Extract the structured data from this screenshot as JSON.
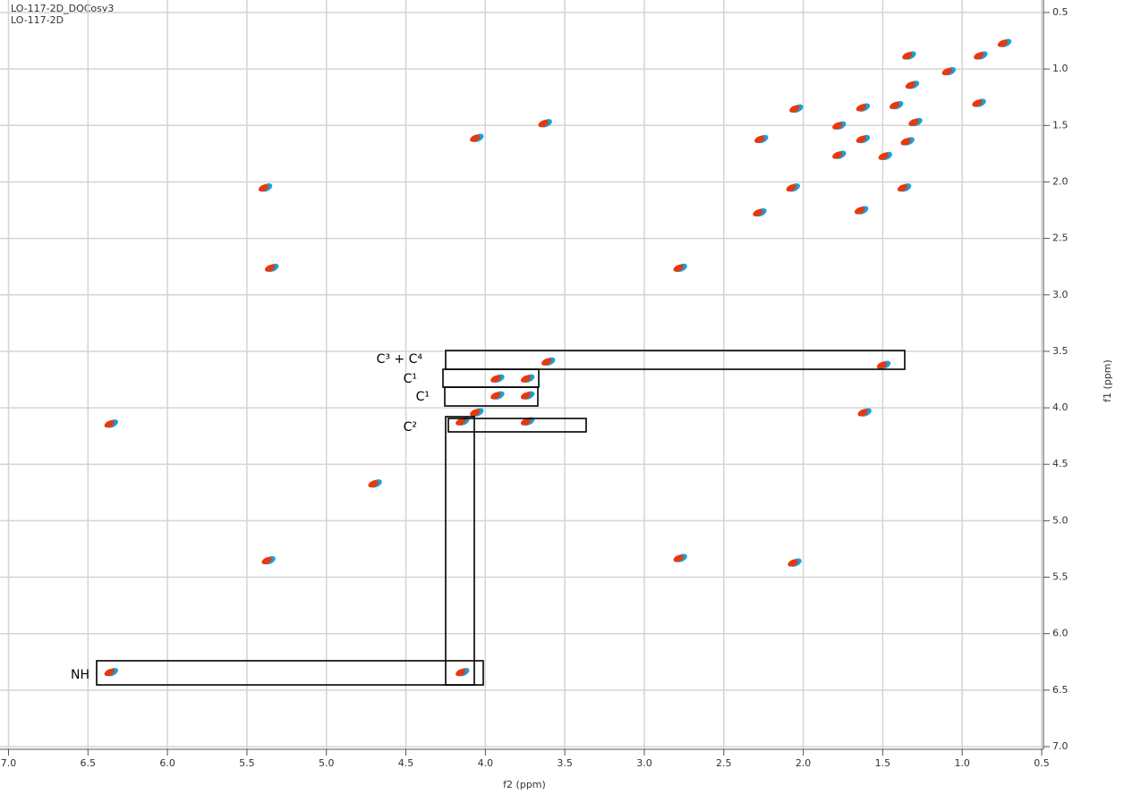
{
  "chart_data": {
    "type": "scatter",
    "title": "LO-117-2D_DQCosy3",
    "subtitle": "LO-117-2D",
    "xlabel": "f2 (ppm)",
    "ylabel": "f1 (ppm)",
    "x": [
      1.34,
      0.89,
      1.63,
      2.05,
      0.9,
      1.42,
      1.78,
      1.3,
      2.27,
      1.63,
      1.35,
      1.78,
      1.49,
      1.37,
      2.07,
      1.64,
      2.28,
      1.32,
      1.09,
      0.74,
      3.63,
      4.06,
      5.39,
      5.35,
      2.78,
      3.61,
      3.93,
      3.74,
      3.93,
      3.74,
      4.06,
      4.15,
      3.74,
      1.62,
      6.36,
      5.37,
      2.78,
      2.06,
      6.36,
      4.15,
      1.5,
      4.7
    ],
    "y": [
      0.88,
      0.88,
      1.34,
      1.35,
      1.3,
      1.32,
      1.5,
      1.47,
      1.62,
      1.62,
      1.64,
      1.76,
      1.77,
      2.05,
      2.05,
      2.25,
      2.27,
      1.14,
      1.02,
      0.77,
      1.48,
      1.61,
      2.05,
      2.76,
      2.76,
      3.59,
      3.74,
      3.74,
      3.89,
      3.89,
      4.04,
      4.12,
      4.12,
      4.04,
      4.14,
      5.35,
      5.33,
      5.37,
      6.34,
      6.34,
      3.62,
      4.67
    ],
    "xlim": [
      7.0,
      0.5
    ],
    "ylim": [
      0.5,
      7.0
    ],
    "xticks": [
      {
        "value": 7.0,
        "label": "7.0"
      },
      {
        "value": 6.5,
        "label": "6.5"
      },
      {
        "value": 6.0,
        "label": "6.0"
      },
      {
        "value": 5.5,
        "label": "5.5"
      },
      {
        "value": 5.0,
        "label": "5.0"
      },
      {
        "value": 4.5,
        "label": "4.5"
      },
      {
        "value": 4.0,
        "label": "4.0"
      },
      {
        "value": 3.5,
        "label": "3.5"
      },
      {
        "value": 3.0,
        "label": "3.0"
      },
      {
        "value": 2.5,
        "label": "2.5"
      },
      {
        "value": 2.0,
        "label": "2.0"
      },
      {
        "value": 1.5,
        "label": "1.5"
      },
      {
        "value": 1.0,
        "label": "1.0"
      },
      {
        "value": 0.5,
        "label": "0.5"
      }
    ],
    "yticks": [
      {
        "value": 0.5,
        "label": "0.5"
      },
      {
        "value": 1.0,
        "label": "1.0"
      },
      {
        "value": 1.5,
        "label": "1.5"
      },
      {
        "value": 2.0,
        "label": "2.0"
      },
      {
        "value": 2.5,
        "label": "2.5"
      },
      {
        "value": 3.0,
        "label": "3.0"
      },
      {
        "value": 3.5,
        "label": "3.5"
      },
      {
        "value": 4.0,
        "label": "4.0"
      },
      {
        "value": 4.5,
        "label": "4.5"
      },
      {
        "value": 5.0,
        "label": "5.0"
      },
      {
        "value": 5.5,
        "label": "5.5"
      },
      {
        "value": 6.0,
        "label": "6.0"
      },
      {
        "value": 6.5,
        "label": "6.5"
      },
      {
        "value": 7.0,
        "label": "7.0"
      }
    ],
    "grid": true,
    "colors": [
      "#e8380d",
      "#1e9fd8"
    ],
    "annotations": [
      "C³ + C⁴",
      "C¹",
      "C¹",
      "C²",
      "NH"
    ]
  }
}
